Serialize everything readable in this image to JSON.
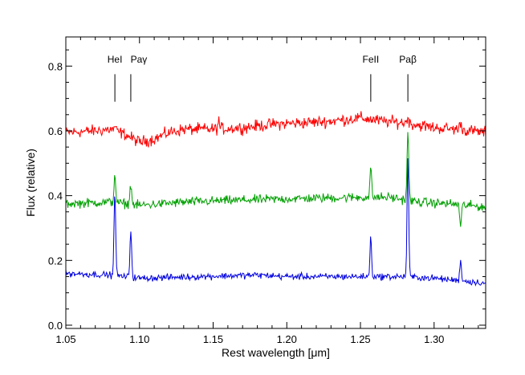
{
  "chart_data": {
    "type": "line",
    "xlabel": "Rest wavelength [μm]",
    "ylabel": "Flux (relative)",
    "xlim": [
      1.05,
      1.335
    ],
    "ylim": [
      -0.01,
      0.89
    ],
    "x_ticks": [
      {
        "value": 1.05,
        "label": "1.05"
      },
      {
        "value": 1.1,
        "label": "1.10"
      },
      {
        "value": 1.15,
        "label": "1.15"
      },
      {
        "value": 1.2,
        "label": "1.20"
      },
      {
        "value": 1.25,
        "label": "1.25"
      },
      {
        "value": 1.3,
        "label": "1.30"
      }
    ],
    "y_ticks": [
      {
        "value": 0.0,
        "label": "0.0"
      },
      {
        "value": 0.2,
        "label": "0.2"
      },
      {
        "value": 0.4,
        "label": "0.4"
      },
      {
        "value": 0.6,
        "label": "0.6"
      },
      {
        "value": 0.8,
        "label": "0.8"
      }
    ],
    "line_markers": [
      {
        "label": "HeI",
        "x": 1.0833
      },
      {
        "label": "Paγ",
        "x": 1.0941
      },
      {
        "label": "FeII",
        "x": 1.257
      },
      {
        "label": "Paβ",
        "x": 1.2822
      }
    ],
    "marker_y_range": [
      0.69,
      0.775
    ],
    "series": [
      {
        "color": "#ff0000",
        "continuum": [
          [
            1.05,
            0.595
          ],
          [
            1.07,
            0.6
          ],
          [
            1.08,
            0.605
          ],
          [
            1.09,
            0.59
          ],
          [
            1.1,
            0.565
          ],
          [
            1.11,
            0.575
          ],
          [
            1.12,
            0.595
          ],
          [
            1.13,
            0.605
          ],
          [
            1.15,
            0.605
          ],
          [
            1.17,
            0.61
          ],
          [
            1.19,
            0.62
          ],
          [
            1.21,
            0.625
          ],
          [
            1.23,
            0.63
          ],
          [
            1.25,
            0.64
          ],
          [
            1.265,
            0.63
          ],
          [
            1.28,
            0.625
          ],
          [
            1.3,
            0.61
          ],
          [
            1.315,
            0.605
          ],
          [
            1.335,
            0.595
          ]
        ],
        "noise": 0.009,
        "lines": [
          [
            1.0833,
            0.015
          ],
          [
            1.1538,
            0.025
          ],
          [
            1.2822,
            0.02
          ],
          [
            1.318,
            0.025
          ]
        ]
      },
      {
        "color": "#00a000",
        "continuum": [
          [
            1.05,
            0.375
          ],
          [
            1.08,
            0.38
          ],
          [
            1.1,
            0.37
          ],
          [
            1.13,
            0.38
          ],
          [
            1.16,
            0.385
          ],
          [
            1.2,
            0.39
          ],
          [
            1.25,
            0.395
          ],
          [
            1.27,
            0.395
          ],
          [
            1.29,
            0.38
          ],
          [
            1.31,
            0.375
          ],
          [
            1.335,
            0.365
          ]
        ],
        "noise": 0.007,
        "lines": [
          [
            1.0833,
            0.09
          ],
          [
            1.0941,
            0.065
          ],
          [
            1.257,
            0.09
          ],
          [
            1.2822,
            0.22
          ],
          [
            1.318,
            -0.07
          ]
        ]
      },
      {
        "color": "#0000e0",
        "continuum": [
          [
            1.05,
            0.16
          ],
          [
            1.08,
            0.155
          ],
          [
            1.1,
            0.145
          ],
          [
            1.14,
            0.15
          ],
          [
            1.18,
            0.155
          ],
          [
            1.2,
            0.15
          ],
          [
            1.25,
            0.15
          ],
          [
            1.28,
            0.15
          ],
          [
            1.3,
            0.145
          ],
          [
            1.335,
            0.13
          ]
        ],
        "noise": 0.005,
        "lines": [
          [
            1.0833,
            0.265
          ],
          [
            1.0941,
            0.15
          ],
          [
            1.257,
            0.12
          ],
          [
            1.2822,
            0.37
          ],
          [
            1.318,
            0.065
          ]
        ]
      }
    ]
  }
}
